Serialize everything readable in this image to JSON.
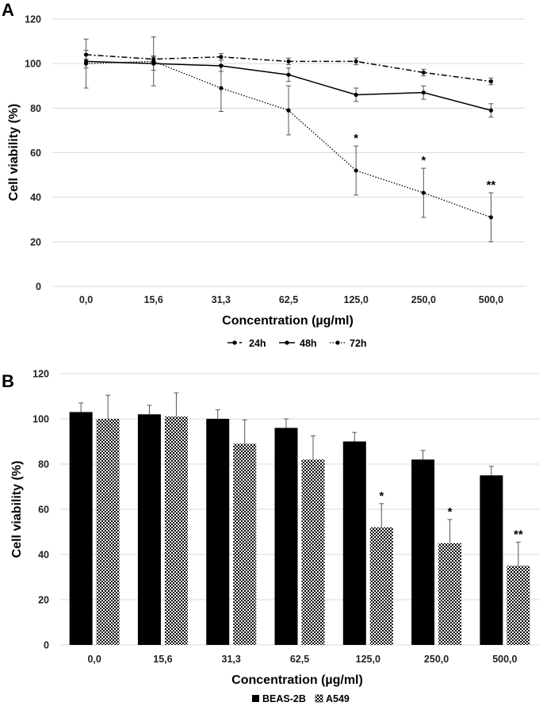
{
  "chart_data": [
    {
      "panel": "A",
      "type": "line",
      "categories": [
        "0,0",
        "15,6",
        "31,3",
        "62,5",
        "125,0",
        "250,0",
        "500,0"
      ],
      "ylim": [
        0,
        120
      ],
      "yticks": [
        "0",
        "20",
        "40",
        "60",
        "80",
        "100",
        "120"
      ],
      "xlabel": "Concentration (µg/ml)",
      "ylabel": "Cell viability (%)",
      "grid": "horizontal",
      "legend_position": "bottom",
      "series": [
        {
          "name": "24h",
          "style": "dash-dot",
          "values": [
            104,
            102,
            103,
            101,
            101,
            96,
            92
          ],
          "errors": [
            2,
            1.5,
            1.5,
            1.5,
            1.5,
            1.5,
            1.5
          ]
        },
        {
          "name": "48h",
          "style": "solid",
          "values": [
            101,
            100,
            99,
            95,
            86,
            87,
            79
          ],
          "errors": [
            3,
            3,
            2.5,
            3,
            3,
            3,
            3
          ]
        },
        {
          "name": "72h",
          "style": "dotted",
          "values": [
            100,
            101,
            89,
            79,
            52,
            42,
            31
          ],
          "errors": [
            11,
            11,
            10.5,
            11,
            11,
            11,
            11
          ]
        }
      ],
      "annotations": [
        {
          "category": "125,0",
          "text": "*"
        },
        {
          "category": "250,0",
          "text": "*"
        },
        {
          "category": "500,0",
          "text": "**"
        }
      ]
    },
    {
      "panel": "B",
      "type": "bar",
      "categories": [
        "0,0",
        "15,6",
        "31,3",
        "62,5",
        "125,0",
        "250,0",
        "500,0"
      ],
      "ylim": [
        0,
        120
      ],
      "yticks": [
        "0",
        "20",
        "40",
        "60",
        "80",
        "100",
        "120"
      ],
      "xlabel": "Concentration (µg/ml)",
      "ylabel": "Cell viability (%)",
      "grid": "horizontal",
      "legend_position": "bottom",
      "series": [
        {
          "name": "BEAS-2B",
          "fill": "solid-black",
          "values": [
            103,
            102,
            100,
            96,
            90,
            82,
            75
          ],
          "errors": [
            4,
            4,
            4,
            4,
            4,
            4,
            4
          ]
        },
        {
          "name": "A549",
          "fill": "checkered",
          "values": [
            100,
            101,
            89,
            82,
            52,
            45,
            35
          ],
          "errors": [
            10.5,
            10.5,
            10.5,
            10.5,
            10.5,
            10.5,
            10.5
          ]
        }
      ],
      "annotations": [
        {
          "category": "125,0",
          "text": "*"
        },
        {
          "category": "250,0",
          "text": "*"
        },
        {
          "category": "500,0",
          "text": "**"
        }
      ]
    }
  ],
  "colors": {
    "ink": "#000000",
    "grid": "#d9d9d9",
    "errorbar": "#555555",
    "background": "#ffffff"
  }
}
